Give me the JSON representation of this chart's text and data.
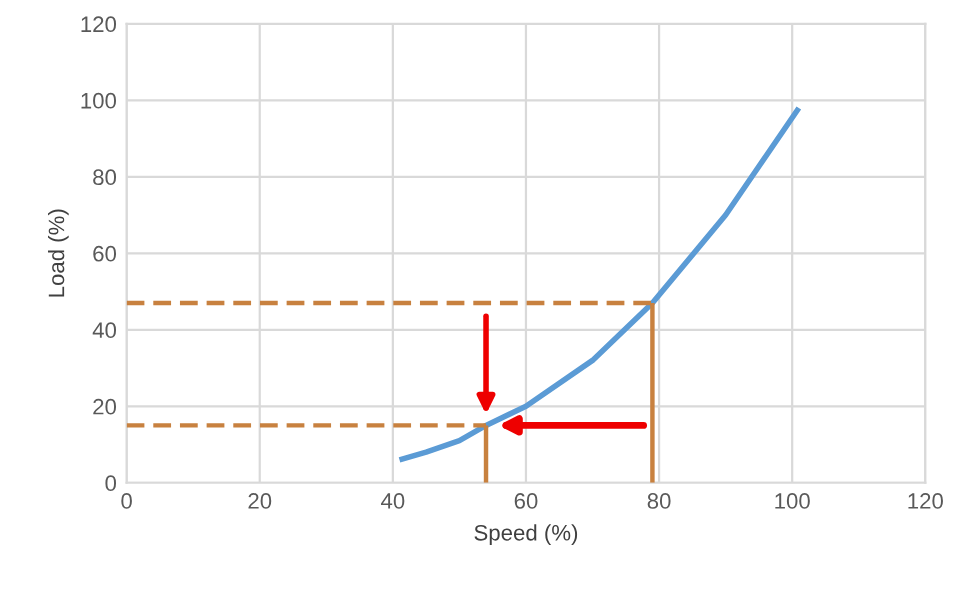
{
  "chart_data": {
    "type": "line",
    "xlabel": "Speed (%)",
    "ylabel": "Load (%)",
    "xlim": [
      0,
      120
    ],
    "xticks": [
      0,
      20,
      40,
      60,
      80,
      100,
      120
    ],
    "ylim": [
      0,
      120
    ],
    "yticks": [
      0,
      20,
      40,
      60,
      80,
      100,
      120
    ],
    "grid": true,
    "series": [
      {
        "color": "#5b9bd5",
        "line_style": "solid",
        "x": [
          41,
          45,
          50,
          54,
          60,
          70,
          79,
          90,
          101
        ],
        "values": [
          6,
          8,
          11,
          15,
          20,
          32,
          47,
          70,
          98
        ]
      },
      {
        "color": "#c8813f",
        "line_style": "dashed",
        "x": [
          0,
          79
        ],
        "values": [
          47,
          47
        ]
      },
      {
        "color": "#c8813f",
        "line_style": "solid",
        "x": [
          79,
          79
        ],
        "values": [
          0,
          47
        ]
      },
      {
        "color": "#c8813f",
        "line_style": "dashed",
        "x": [
          0,
          54
        ],
        "values": [
          15,
          15
        ]
      },
      {
        "color": "#c8813f",
        "line_style": "solid",
        "x": [
          54,
          54
        ],
        "values": [
          0,
          15
        ]
      }
    ]
  }
}
